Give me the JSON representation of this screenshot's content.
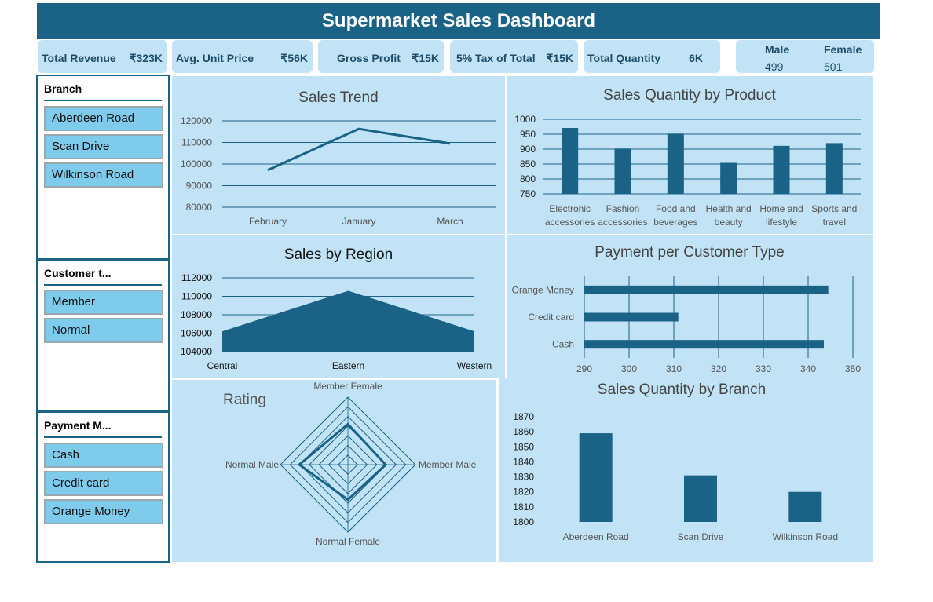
{
  "title": "Supermarket Sales Dashboard",
  "kpis": [
    {
      "label": "Total Revenue",
      "value": "₹323K"
    },
    {
      "label": "Avg. Unit Price",
      "value": "₹56K"
    },
    {
      "label": "Gross Profit",
      "value": "₹15K"
    },
    {
      "label": "5% Tax of Total",
      "value": "₹15K"
    },
    {
      "label": "Total Quantity",
      "value": "6K"
    }
  ],
  "gender": {
    "male_label": "Male",
    "male_value": "499",
    "female_label": "Female",
    "female_value": "501"
  },
  "slicers": {
    "branch": {
      "title": "Branch",
      "items": [
        "Aberdeen Road",
        "Scan Drive",
        "Wilkinson Road"
      ]
    },
    "customer": {
      "title": "Customer t...",
      "items": [
        "Member",
        "Normal"
      ]
    },
    "payment": {
      "title": "Payment M...",
      "items": [
        "Cash",
        "Credit card",
        "Orange Money"
      ]
    }
  },
  "colors": {
    "accent": "#1a6286",
    "panel": "#c2e3f5",
    "slicer_button": "#7fcbec"
  },
  "chart_data": [
    {
      "id": "trend",
      "type": "line",
      "title": "Sales Trend",
      "categories": [
        "February",
        "January",
        "March"
      ],
      "values": [
        97200,
        116300,
        109500
      ],
      "ylim": [
        80000,
        120000
      ],
      "yticks": [
        80000,
        90000,
        100000,
        110000,
        120000
      ],
      "grid": true
    },
    {
      "id": "product",
      "type": "bar",
      "title": "Sales Quantity by Product",
      "categories": [
        "Electronic accessories",
        "Fashion accessories",
        "Food and beverages",
        "Health and beauty",
        "Home and lifestyle",
        "Sports and travel"
      ],
      "category_lines": [
        [
          "Electronic",
          "accessories"
        ],
        [
          "Fashion",
          "accessories"
        ],
        [
          "Food and",
          "beverages"
        ],
        [
          "Health and",
          "beauty"
        ],
        [
          "Home and",
          "lifestyle"
        ],
        [
          "Sports and",
          "travel"
        ]
      ],
      "values": [
        971,
        902,
        952,
        854,
        911,
        920
      ],
      "ylim": [
        750,
        1000
      ],
      "yticks": [
        750,
        800,
        850,
        900,
        950,
        1000
      ],
      "grid": true
    },
    {
      "id": "region",
      "type": "area",
      "title": "Sales by Region",
      "categories": [
        "Central",
        "Eastern",
        "Western"
      ],
      "values": [
        106200,
        110600,
        106200
      ],
      "ylim": [
        104000,
        112000
      ],
      "yticks": [
        104000,
        106000,
        108000,
        110000,
        112000
      ],
      "grid": true
    },
    {
      "id": "payment",
      "type": "bar",
      "orientation": "horizontal",
      "title": "Payment per Customer Type",
      "categories": [
        "Orange Money",
        "Credit card",
        "Cash"
      ],
      "values": [
        344.5,
        311,
        343.5
      ],
      "xlim": [
        290,
        350
      ],
      "xticks": [
        290,
        300,
        310,
        320,
        330,
        340,
        350
      ],
      "grid": true
    },
    {
      "id": "rating",
      "type": "radar",
      "title": "Rating",
      "categories": [
        "Member Female",
        "Member Male",
        "Normal Female",
        "Normal Male"
      ],
      "values": [
        6.95,
        6.94,
        6.93,
        6.98
      ],
      "rmin": 6.8,
      "rmax": 7.05,
      "rings": 7
    },
    {
      "id": "branch",
      "type": "bar",
      "title": "Sales Quantity by Branch",
      "categories": [
        "Aberdeen Road",
        "Scan Drive",
        "Wilkinson Road"
      ],
      "values": [
        1859,
        1831,
        1820
      ],
      "ylim": [
        1800,
        1870
      ],
      "yticks": [
        1800,
        1810,
        1820,
        1830,
        1840,
        1850,
        1860,
        1870
      ],
      "grid": true
    }
  ]
}
